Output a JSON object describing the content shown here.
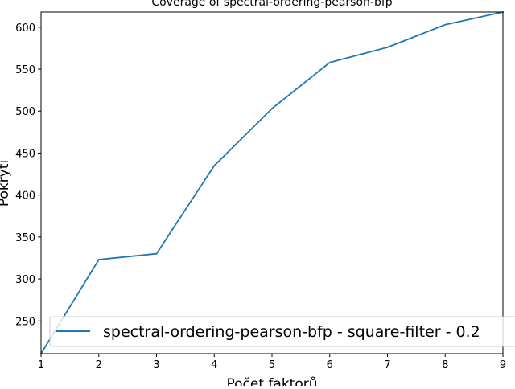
{
  "chart_data": {
    "type": "line",
    "title": "Coverage of spectral-ordering-pearson-bfp",
    "xlabel": "Počet faktorů",
    "ylabel": "Pokrytí",
    "x": [
      1,
      2,
      3,
      4,
      5,
      6,
      7,
      8,
      9
    ],
    "series": [
      {
        "name": "spectral-ordering-pearson-bfp - square-filter - 0.2",
        "values": [
          211,
          323,
          330,
          435,
          503,
          558,
          576,
          603,
          618
        ],
        "color": "#1f77b4"
      }
    ],
    "xlim": [
      1,
      9
    ],
    "ylim": [
      211,
      618
    ],
    "xticks": [
      1,
      2,
      3,
      4,
      5,
      6,
      7,
      8,
      9
    ],
    "yticks": [
      250,
      300,
      350,
      400,
      450,
      500,
      550,
      600
    ],
    "grid": false,
    "legend_position": "lower-right"
  }
}
